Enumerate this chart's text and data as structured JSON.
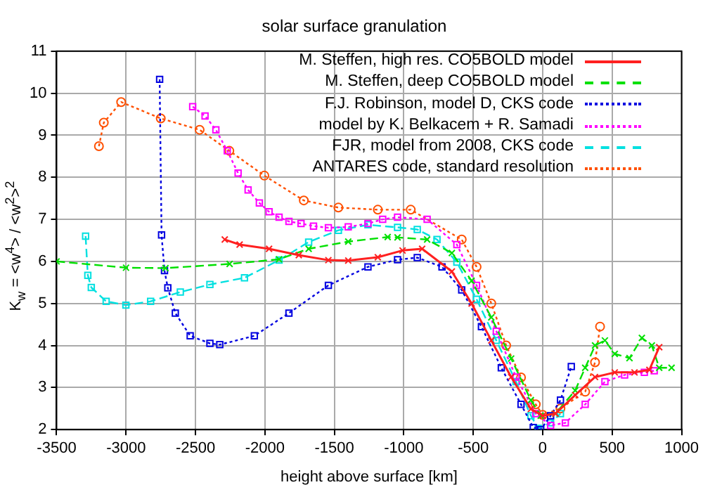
{
  "chart_data": {
    "type": "line",
    "title": "solar surface granulation",
    "xlabel": "height above surface [km]",
    "ylabel": "K$_{w}$ = <w$^{4}$> / <w$^{2}$>$^{2}$",
    "xlim": [
      -3500,
      1000
    ],
    "xticks": [
      -3500,
      -3000,
      -2500,
      -2000,
      -1500,
      -1000,
      -500,
      0,
      500,
      1000
    ],
    "ylim": [
      2,
      11
    ],
    "yticks": [
      2,
      3,
      4,
      5,
      6,
      7,
      8,
      9,
      10,
      11
    ],
    "grid": true,
    "legend": "top right",
    "series": [
      {
        "name": "M. Steffen, high res. CO5BOLD model",
        "color": "#ff2020",
        "marker": "cross",
        "line_style": "solid",
        "x": [
          -2289,
          -2182,
          -1970,
          -1756,
          -1543,
          -1400,
          -1187,
          -1009,
          -868,
          -654,
          -512,
          -370,
          -227,
          -85,
          0,
          92,
          234,
          377,
          519,
          661,
          768,
          839
        ],
        "values": [
          6.52,
          6.4,
          6.3,
          6.15,
          6.03,
          6.02,
          6.1,
          6.26,
          6.3,
          5.76,
          5.0,
          4.12,
          3.25,
          2.49,
          2.33,
          2.38,
          2.82,
          3.25,
          3.36,
          3.36,
          3.42,
          3.96
        ]
      },
      {
        "name": "M. Steffen, deep CO5BOLD model",
        "color": "#00e000",
        "marker": "cross",
        "line_style": "dashed",
        "x": [
          -3500,
          -3000,
          -2716,
          -2254,
          -1898,
          -1685,
          -1400,
          -1116,
          -1045,
          -832,
          -654,
          -512,
          -370,
          -227,
          -85,
          -14,
          92,
          234,
          306,
          377,
          448,
          519,
          625,
          714,
          786,
          839,
          928
        ],
        "values": [
          6.0,
          5.85,
          5.84,
          5.94,
          6.05,
          6.3,
          6.47,
          6.58,
          6.57,
          6.52,
          6.2,
          5.54,
          4.67,
          3.69,
          2.7,
          2.33,
          2.38,
          2.93,
          3.47,
          4.0,
          4.12,
          3.8,
          3.7,
          4.18,
          4.0,
          3.47,
          3.47
        ]
      },
      {
        "name": "F.J. Robinson, model D, CKS code",
        "color": "#0000e0",
        "marker": "square",
        "line_style": "dotted",
        "x": [
          -2758,
          -2744,
          -2723,
          -2699,
          -2645,
          -2538,
          -2396,
          -2325,
          -2076,
          -1827,
          -1543,
          -1258,
          -1045,
          -903,
          -725,
          -583,
          -441,
          -298,
          -156,
          -68,
          -14,
          57,
          128,
          206
        ],
        "values": [
          10.33,
          6.63,
          5.78,
          5.37,
          4.77,
          4.23,
          4.05,
          4.02,
          4.23,
          4.77,
          5.43,
          5.87,
          6.04,
          6.09,
          5.87,
          5.32,
          4.45,
          3.47,
          2.6,
          2.05,
          2.0,
          2.33,
          2.7,
          3.5
        ]
      },
      {
        "name": "model by K. Belkacem + R. Samadi",
        "color": "#ff00ff",
        "marker": "square",
        "line_style": "dotted",
        "x": [
          -2520,
          -2431,
          -2353,
          -2271,
          -2193,
          -2121,
          -2040,
          -1970,
          -1898,
          -1827,
          -1740,
          -1650,
          -1543,
          -1400,
          -1258,
          -1152,
          -1045,
          -832,
          -618,
          -476,
          -334,
          -192,
          -50,
          57,
          163,
          306,
          448,
          590,
          732,
          803
        ],
        "values": [
          9.68,
          9.46,
          9.13,
          8.63,
          8.1,
          7.7,
          7.39,
          7.18,
          7.05,
          6.95,
          6.9,
          6.84,
          6.8,
          6.82,
          6.9,
          7.0,
          7.05,
          7.0,
          6.4,
          5.43,
          4.34,
          3.25,
          2.38,
          2.1,
          2.16,
          2.6,
          3.14,
          3.3,
          3.36,
          3.4
        ]
      },
      {
        "name": "FJR, model from 2008, CKS code",
        "color": "#00e0e0",
        "marker": "square",
        "line_style": "dashed",
        "x": [
          -3291,
          -3275,
          -3250,
          -3143,
          -3001,
          -2823,
          -2609,
          -2396,
          -2147,
          -1898,
          -1685,
          -1471,
          -1258,
          -1045,
          -903,
          -761,
          -618,
          -476,
          -334,
          -192,
          -85,
          -32,
          57,
          128
        ],
        "values": [
          6.6,
          5.67,
          5.38,
          5.05,
          4.96,
          5.05,
          5.27,
          5.45,
          5.61,
          6.03,
          6.46,
          6.74,
          6.87,
          6.81,
          6.76,
          6.52,
          5.98,
          5.1,
          4.12,
          3.14,
          2.33,
          2.03,
          2.16,
          2.38
        ]
      },
      {
        "name": "ANTARES code, standard resolution",
        "color": "#ff5000",
        "marker": "circle",
        "line_style": "dotted",
        "x": [
          -3195,
          -3160,
          -3035,
          -2750,
          -2470,
          -2256,
          -2004,
          -1720,
          -1471,
          -1187,
          -950,
          -583,
          -476,
          -370,
          -263,
          -156,
          -50,
          0,
          128,
          306,
          377,
          413
        ],
        "values": [
          8.74,
          9.3,
          9.79,
          9.4,
          9.13,
          8.63,
          8.04,
          7.45,
          7.28,
          7.23,
          7.23,
          6.52,
          5.87,
          5.0,
          4.0,
          3.24,
          2.6,
          2.35,
          2.5,
          2.9,
          3.6,
          4.45
        ]
      }
    ]
  }
}
